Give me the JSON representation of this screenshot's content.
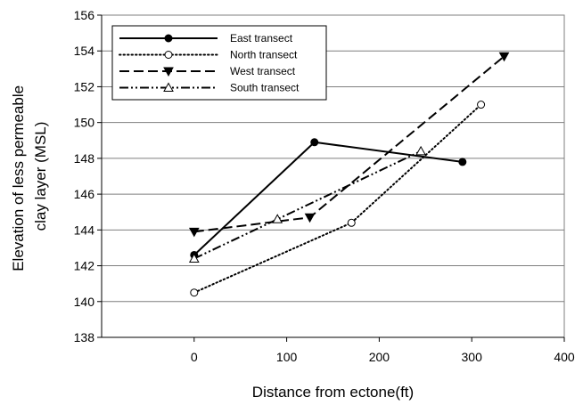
{
  "chart_data": {
    "type": "line",
    "title": "",
    "xlabel": "Distance from ectone(ft)",
    "ylabel_lines": [
      "Elevation of less permeable",
      "clay layer (MSL)"
    ],
    "xlim": [
      -100,
      400
    ],
    "ylim": [
      138,
      156
    ],
    "x_ticks": [
      "0",
      "100",
      "200",
      "300",
      "400"
    ],
    "x_tick_values": [
      0,
      100,
      200,
      300,
      400
    ],
    "y_ticks": [
      "138",
      "140",
      "142",
      "144",
      "146",
      "148",
      "150",
      "152",
      "154",
      "156"
    ],
    "y_tick_values": [
      138,
      140,
      142,
      144,
      146,
      148,
      150,
      152,
      154,
      156
    ],
    "grid": "horizontal",
    "legend_position": "top-left",
    "series": [
      {
        "name": "East transect",
        "line_style": "solid",
        "marker": "filled-circle",
        "x": [
          0,
          130,
          290
        ],
        "y": [
          142.6,
          148.9,
          147.8
        ]
      },
      {
        "name": "North transect",
        "line_style": "dotted",
        "marker": "open-circle",
        "x": [
          0,
          170,
          310
        ],
        "y": [
          140.5,
          144.4,
          151.0
        ]
      },
      {
        "name": "West transect",
        "line_style": "dashed",
        "marker": "filled-triangle-down",
        "x": [
          0,
          125,
          335
        ],
        "y": [
          143.9,
          144.7,
          153.7
        ]
      },
      {
        "name": "South transect",
        "line_style": "dash-dot-dot",
        "marker": "open-triangle-up",
        "x": [
          0,
          90,
          245
        ],
        "y": [
          142.4,
          144.6,
          148.4
        ]
      }
    ]
  },
  "colors": {
    "series": "#000000",
    "gridline": "#7f7f7f",
    "background": "#ffffff"
  }
}
